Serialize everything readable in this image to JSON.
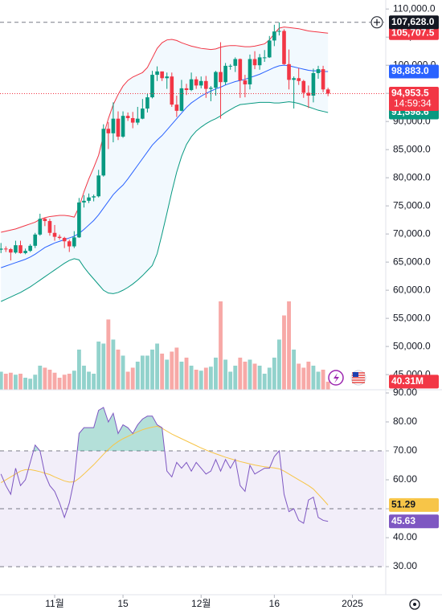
{
  "chart_data": {
    "type": "candlestick",
    "xlim": [
      -0.2,
      78.5
    ],
    "xticks": [
      {
        "value": 11,
        "label": "11월"
      },
      {
        "value": 25,
        "label": "15"
      },
      {
        "value": 41,
        "label": "12월"
      },
      {
        "value": 56,
        "label": "16"
      },
      {
        "value": 72,
        "label": "2025"
      }
    ],
    "ylim": [
      42300,
      111600
    ],
    "yticks": [
      {
        "value": 45000,
        "label": "45,000.0"
      },
      {
        "value": 50000,
        "label": "50,000.0"
      },
      {
        "value": 55000,
        "label": "55,000.0"
      },
      {
        "value": 60000,
        "label": "60,000.0"
      },
      {
        "value": 65000,
        "label": "65,000.0"
      },
      {
        "value": 70000,
        "label": "70,000.0"
      },
      {
        "value": 75000,
        "label": "75,000.0"
      },
      {
        "value": 80000,
        "label": "80,000.0"
      },
      {
        "value": 85000,
        "label": "85,000.0"
      },
      {
        "value": 90000,
        "label": "90,000.0"
      },
      {
        "value": 95000,
        "label": "95,000.0"
      },
      {
        "value": 100000,
        "label": "100,000.0"
      },
      {
        "value": 105000,
        "label": "105,000.0"
      },
      {
        "value": 110000,
        "label": "110,000.0"
      }
    ],
    "up_color": "#089981",
    "down_color": "#f23645",
    "candles": {
      "open": [
        67200,
        67400,
        67300,
        66700,
        68000,
        66600,
        67000,
        67900,
        69900,
        72700,
        72300,
        70200,
        69500,
        69300,
        68700,
        67800,
        69400,
        75600,
        75900,
        76500,
        76700,
        80400,
        88700,
        87900,
        90500,
        87300,
        91000,
        90600,
        89800,
        90500,
        92300,
        94300,
        98300,
        98900,
        97700,
        98000,
        93000,
        91900,
        95900,
        95600,
        97500,
        96400,
        97200,
        95800,
        96000,
        98800,
        97000,
        99900,
        99900,
        101100,
        97300,
        96600,
        101100,
        100000,
        101400,
        101400,
        104400,
        106000,
        106100,
        100200,
        97400,
        97700,
        97200,
        95100,
        94600,
        98600,
        99300,
        95700
      ],
      "high": [
        68400,
        67800,
        67500,
        68800,
        68800,
        67400,
        68200,
        70200,
        73600,
        72900,
        72700,
        71600,
        69900,
        69500,
        69000,
        70500,
        76400,
        76900,
        77200,
        77000,
        81400,
        89500,
        89900,
        93400,
        91800,
        91800,
        91600,
        91700,
        92600,
        94000,
        94900,
        99000,
        99800,
        98900,
        98700,
        98700,
        94600,
        97400,
        96700,
        98700,
        98000,
        98000,
        98100,
        96300,
        99000,
        104100,
        100400,
        100200,
        101400,
        101200,
        98300,
        101900,
        102500,
        102000,
        102700,
        105200,
        107200,
        107628,
        106400,
        102800,
        98000,
        99500,
        97400,
        96400,
        99400,
        99900,
        99900,
        96000
      ],
      "low": [
        66600,
        66800,
        65300,
        66500,
        66500,
        66400,
        66800,
        67500,
        69700,
        71400,
        69700,
        68800,
        69000,
        67500,
        66800,
        67500,
        69300,
        74700,
        75500,
        75800,
        76500,
        80200,
        85100,
        86300,
        86700,
        87100,
        90100,
        88800,
        89400,
        90400,
        91600,
        94100,
        97200,
        97200,
        95800,
        92600,
        90800,
        91800,
        94700,
        95400,
        95800,
        95900,
        94200,
        93600,
        94600,
        90500,
        96500,
        99200,
        98800,
        94200,
        94300,
        95700,
        99300,
        99200,
        100600,
        101300,
        103400,
        105300,
        100100,
        95700,
        92300,
        96500,
        94200,
        92400,
        93400,
        97600,
        95200,
        94500
      ],
      "close": [
        67400,
        67300,
        66700,
        68000,
        66600,
        67000,
        67900,
        69900,
        72700,
        72300,
        70200,
        69500,
        69300,
        68700,
        67800,
        69400,
        75600,
        75900,
        76500,
        76700,
        80400,
        88700,
        87900,
        90500,
        87300,
        91000,
        90600,
        89800,
        90500,
        92300,
        94300,
        98300,
        98900,
        97700,
        98000,
        93000,
        91900,
        95900,
        95600,
        97500,
        96400,
        97200,
        95800,
        96000,
        98800,
        97000,
        99900,
        99900,
        101100,
        97300,
        96600,
        101100,
        100000,
        101400,
        101400,
        104400,
        106000,
        106100,
        100200,
        97400,
        97700,
        97200,
        95100,
        94600,
        98600,
        99300,
        95700,
        94953.5
      ],
      "last_label": "94,953.5",
      "countdown": "14:59:34",
      "high_label": "107,628.0"
    },
    "bands": {
      "upper": {
        "color": "#f23645",
        "last_label": "105,707.5",
        "values": [
          70300,
          70500,
          70700,
          70900,
          71200,
          71500,
          71800,
          72100,
          72600,
          72900,
          73100,
          73200,
          73300,
          73300,
          73200,
          73000,
          74800,
          77500,
          79800,
          81800,
          84000,
          87500,
          90500,
          93000,
          94800,
          96300,
          97300,
          97900,
          98300,
          98700,
          99600,
          101300,
          103000,
          104000,
          104500,
          104600,
          104400,
          104000,
          103700,
          103400,
          103200,
          103000,
          102900,
          102800,
          102900,
          103200,
          103400,
          103500,
          103500,
          103400,
          103300,
          103300,
          103400,
          103600,
          103800,
          104500,
          105600,
          106600,
          106800,
          106700,
          106600,
          106500,
          106300,
          106100,
          106000,
          105900,
          105800,
          105707.5
        ]
      },
      "middle": {
        "color": "#2962ff",
        "last_label": "98,883.0",
        "values": [
          64000,
          64300,
          64600,
          64900,
          65200,
          65500,
          65900,
          66400,
          67000,
          67600,
          68000,
          68400,
          68700,
          69000,
          69300,
          69600,
          70100,
          70800,
          71600,
          72400,
          73400,
          74600,
          75800,
          77000,
          77900,
          78700,
          79800,
          81000,
          82200,
          83400,
          84600,
          85800,
          86700,
          87500,
          88500,
          89500,
          90500,
          91500,
          92500,
          93300,
          93900,
          94500,
          95000,
          95400,
          95800,
          96100,
          96500,
          96800,
          97100,
          97300,
          97500,
          97800,
          98100,
          98400,
          98800,
          99200,
          99600,
          99900,
          100000,
          99900,
          99700,
          99500,
          99300,
          99100,
          99000,
          99000,
          98900,
          98883
        ]
      },
      "lower": {
        "color": "#089981",
        "last_label": "91,598.6",
        "values": [
          58000,
          58400,
          58800,
          59200,
          59600,
          60100,
          60600,
          61200,
          61800,
          62400,
          63000,
          63600,
          64200,
          64800,
          65300,
          65600,
          65400,
          64100,
          63000,
          62000,
          61000,
          60000,
          59500,
          59400,
          59600,
          60000,
          60500,
          61100,
          61800,
          62600,
          63500,
          64400,
          66500,
          70000,
          73700,
          77500,
          81000,
          83800,
          85900,
          87300,
          88300,
          89000,
          89600,
          90100,
          90500,
          91000,
          91600,
          92100,
          92600,
          93000,
          93100,
          93200,
          93300,
          93400,
          93400,
          93400,
          93300,
          93300,
          93400,
          93500,
          93400,
          93200,
          92900,
          92600,
          92300,
          92000,
          91800,
          91598.6
        ]
      }
    },
    "volume": {
      "vlim": [
        0,
        1940
      ],
      "up_color": "#92d2cc",
      "down_color": "#f7a9a7",
      "last_label": "40.31M",
      "values": [
        90,
        80,
        85,
        75,
        80,
        60,
        55,
        75,
        120,
        110,
        100,
        85,
        60,
        75,
        80,
        95,
        200,
        120,
        90,
        80,
        240,
        230,
        350,
        250,
        200,
        170,
        90,
        110,
        140,
        170,
        170,
        200,
        230,
        180,
        150,
        190,
        210,
        140,
        160,
        120,
        100,
        95,
        110,
        115,
        160,
        440,
        150,
        90,
        120,
        160,
        140,
        150,
        130,
        120,
        80,
        110,
        160,
        250,
        370,
        440,
        200,
        130,
        110,
        140,
        120,
        90,
        100,
        40.31
      ]
    },
    "rsi": {
      "ylim": [
        20.3,
        91.1
      ],
      "yticks": [
        {
          "value": 30,
          "label": "30.00"
        },
        {
          "value": 40,
          "label": "40.00"
        },
        {
          "value": 50,
          "label": "50.00"
        },
        {
          "value": 60,
          "label": "60.00"
        },
        {
          "value": 70,
          "label": "70.00"
        },
        {
          "value": 80,
          "label": "80.00"
        },
        {
          "value": 90,
          "label": "90.00"
        }
      ],
      "levels": [
        70,
        50,
        30
      ],
      "color": "#7e57c2",
      "last_label": "45.63",
      "values": [
        62,
        58,
        55,
        64,
        58,
        60,
        66,
        72,
        70,
        62,
        58,
        56,
        52,
        47,
        52,
        60,
        76,
        78,
        78,
        78,
        84,
        85,
        80,
        83,
        76,
        79,
        78,
        76,
        79,
        81,
        82,
        82,
        79,
        78,
        63,
        61,
        66,
        64,
        66,
        63,
        66,
        64,
        62,
        63,
        67,
        63,
        67,
        64,
        67,
        58,
        56,
        65,
        62,
        63,
        64,
        64,
        68,
        70,
        55,
        49,
        50,
        46,
        45,
        53,
        54,
        47,
        46,
        45.63
      ],
      "ma": {
        "color": "#f7c548",
        "last_label": "51.29",
        "values": [
          59,
          60,
          61,
          62,
          63,
          63.5,
          63.5,
          63.2,
          62.8,
          62.3,
          61.8,
          61,
          60.3,
          59.6,
          59.2,
          59.3,
          60.5,
          62,
          63.6,
          65.2,
          67,
          68.8,
          70.5,
          72,
          73.2,
          74.2,
          75,
          75.8,
          76.6,
          77.3,
          77.8,
          78.2,
          78.5,
          77.8,
          76.8,
          75.8,
          75,
          74.2,
          73.4,
          72.6,
          71.8,
          71,
          70.3,
          69.6,
          69,
          68.4,
          67.8,
          67.3,
          66.8,
          66.3,
          65.9,
          65.5,
          65.1,
          64.8,
          64.5,
          64.3,
          64.1,
          63.8,
          63,
          62,
          61,
          60,
          59,
          58,
          56.8,
          55,
          53.2,
          51.29
        ]
      }
    }
  }
}
